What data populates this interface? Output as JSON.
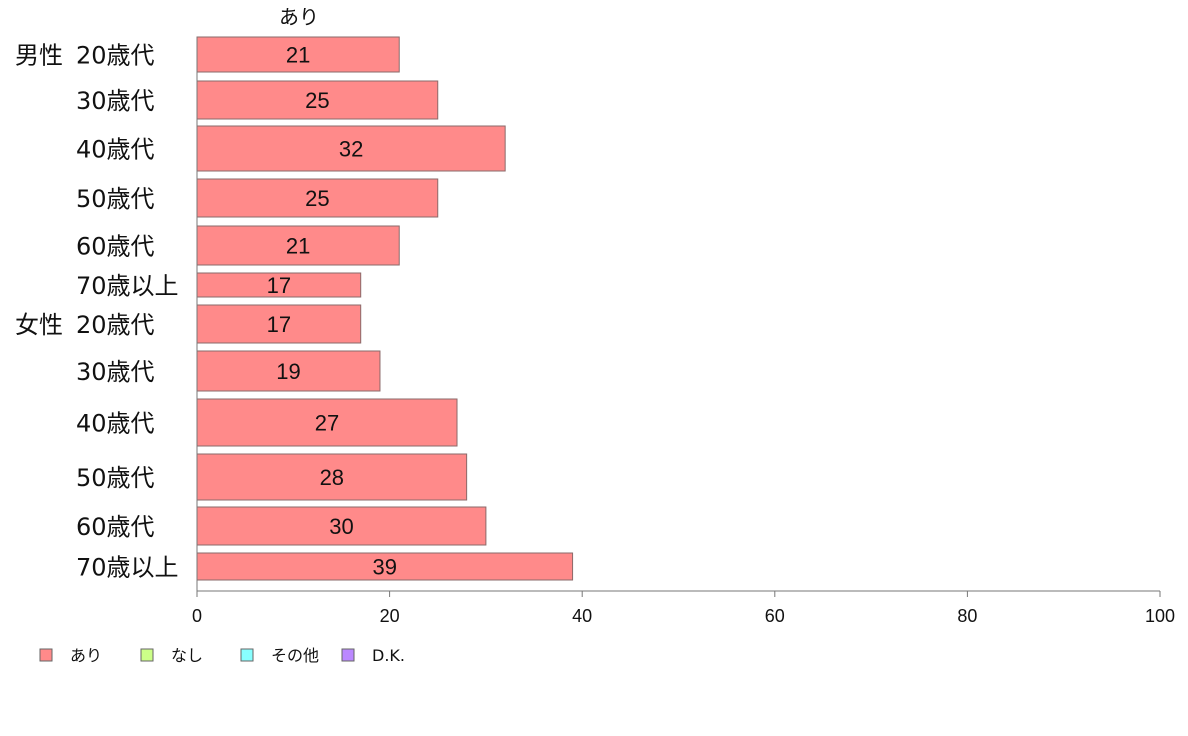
{
  "chart_data": {
    "type": "bar",
    "orientation": "horizontal",
    "series_title": "あり",
    "groups": [
      {
        "name": "男性",
        "categories": [
          "20歳代",
          "30歳代",
          "40歳代",
          "50歳代",
          "60歳代",
          "70歳以上"
        ],
        "values": [
          21,
          25,
          32,
          25,
          21,
          17
        ]
      },
      {
        "name": "女性",
        "categories": [
          "20歳代",
          "30歳代",
          "40歳代",
          "50歳代",
          "60歳代",
          "70歳以上"
        ],
        "values": [
          17,
          19,
          27,
          28,
          30,
          39
        ]
      }
    ],
    "xlim": [
      0,
      100
    ],
    "xticks": [
      0,
      20,
      40,
      60,
      80,
      100
    ],
    "legend": {
      "position": "bottom-left",
      "items": [
        {
          "label": "あり",
          "color": "#ff8a8a"
        },
        {
          "label": "なし",
          "color": "#ccff88"
        },
        {
          "label": "その他",
          "color": "#88ffff"
        },
        {
          "label": "D.K.",
          "color": "#bb88ff"
        }
      ]
    },
    "bar_color": "#ff8a8a",
    "grid": false
  }
}
